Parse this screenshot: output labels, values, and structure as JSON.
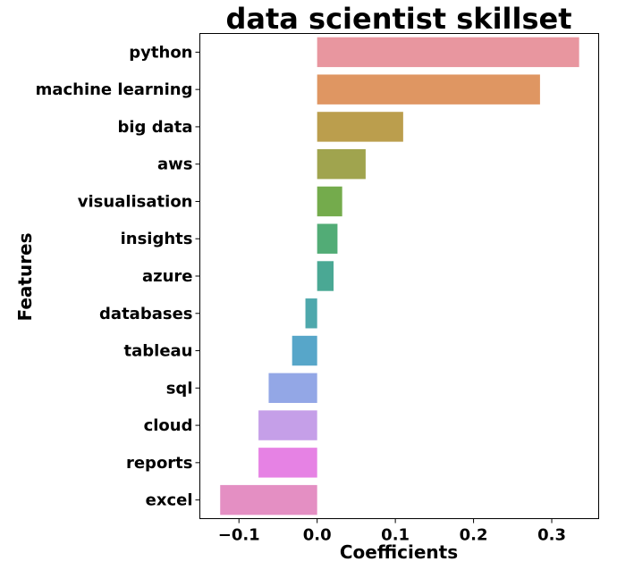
{
  "chart_data": {
    "type": "bar",
    "orientation": "horizontal",
    "title": "data scientist skillset",
    "xlabel": "Coefficients",
    "ylabel": "Features",
    "categories": [
      "python",
      "machine learning",
      "big data",
      "aws",
      "visualisation",
      "insights",
      "azure",
      "databases",
      "tableau",
      "sql",
      "cloud",
      "reports",
      "excel"
    ],
    "values": [
      0.335,
      0.285,
      0.11,
      0.062,
      0.032,
      0.026,
      0.021,
      -0.015,
      -0.032,
      -0.062,
      -0.075,
      -0.075,
      -0.124
    ],
    "colors": [
      "#e8969f",
      "#df9662",
      "#bb9e4d",
      "#a0a44e",
      "#74ab4c",
      "#52ac76",
      "#4aa894",
      "#4ea8ac",
      "#57a6c9",
      "#93a7e6",
      "#c59fe8",
      "#e682e4",
      "#e48fc3"
    ],
    "xticks": [
      -0.1,
      0.0,
      0.1,
      0.2,
      0.3
    ],
    "xtick_labels": [
      "−0.1",
      "0.0",
      "0.1",
      "0.2",
      "0.3"
    ],
    "xlim": [
      -0.15,
      0.36
    ],
    "grid": false,
    "legend": "none"
  }
}
